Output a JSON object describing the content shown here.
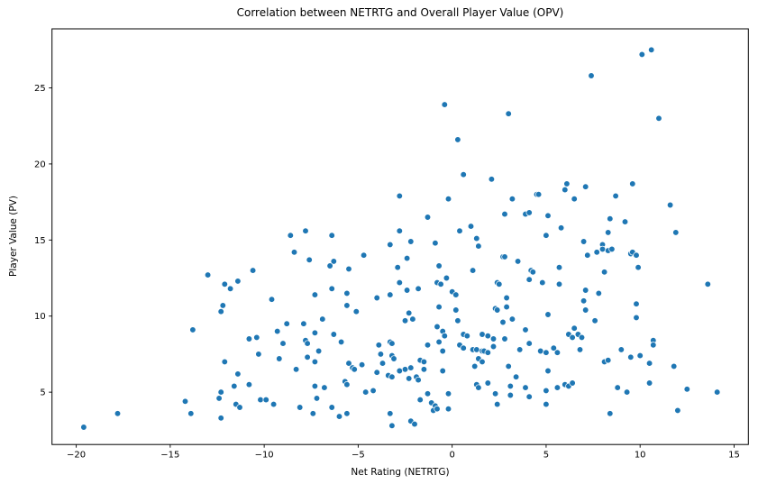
{
  "chart_data": {
    "type": "scatter",
    "title": "Correlation between NETRTG and Overall Player Value (OPV)",
    "xlabel": "Net Rating (NETRTG)",
    "ylabel": "Player Value (PV)",
    "xlim": [
      -21.29,
      15.76
    ],
    "ylim": [
      1.56,
      28.88
    ],
    "x_ticks": [
      -20,
      -15,
      -10,
      -5,
      0,
      5,
      10,
      15
    ],
    "y_ticks": [
      5,
      10,
      15,
      20,
      25
    ],
    "grid": false,
    "legend": "none",
    "marker_color": "#1f77b4",
    "marker_edge_color": "#ffffff",
    "points": [
      [
        -0.4,
        23.9
      ],
      [
        3.0,
        23.3
      ],
      [
        0.3,
        21.6
      ],
      [
        7.4,
        25.8
      ],
      [
        10.1,
        27.2
      ],
      [
        10.6,
        27.5
      ],
      [
        11.0,
        23.0
      ],
      [
        -2.8,
        17.9
      ],
      [
        -8.6,
        15.3
      ],
      [
        -7.8,
        15.6
      ],
      [
        -6.4,
        15.3
      ],
      [
        -2.8,
        15.6
      ],
      [
        -3.3,
        14.7
      ],
      [
        -8.4,
        14.2
      ],
      [
        -4.7,
        14.0
      ],
      [
        -7.6,
        13.7
      ],
      [
        -6.3,
        13.6
      ],
      [
        -6.5,
        13.3
      ],
      [
        -5.5,
        13.1
      ],
      [
        -10.6,
        13.0
      ],
      [
        -2.9,
        13.2
      ],
      [
        -11.4,
        12.3
      ],
      [
        -12.1,
        12.1
      ],
      [
        -13.0,
        12.7
      ],
      [
        -11.8,
        11.8
      ],
      [
        -9.6,
        11.1
      ],
      [
        -7.3,
        11.4
      ],
      [
        -6.4,
        11.8
      ],
      [
        -5.6,
        11.5
      ],
      [
        -5.6,
        10.7
      ],
      [
        -4.0,
        11.2
      ],
      [
        -3.3,
        11.4
      ],
      [
        0.6,
        19.3
      ],
      [
        2.1,
        19.0
      ],
      [
        6.1,
        18.7
      ],
      [
        -0.2,
        17.7
      ],
      [
        3.2,
        17.7
      ],
      [
        4.5,
        18.0
      ],
      [
        4.6,
        18.0
      ],
      [
        6.0,
        18.3
      ],
      [
        2.8,
        16.7
      ],
      [
        3.9,
        16.7
      ],
      [
        4.1,
        16.8
      ],
      [
        5.1,
        16.6
      ],
      [
        -1.3,
        16.5
      ],
      [
        5.8,
        15.8
      ],
      [
        0.4,
        15.6
      ],
      [
        1.0,
        15.9
      ],
      [
        5.0,
        15.3
      ],
      [
        1.3,
        15.1
      ],
      [
        1.4,
        14.6
      ],
      [
        -2.2,
        14.9
      ],
      [
        -0.9,
        14.8
      ],
      [
        -2.4,
        13.8
      ],
      [
        2.7,
        13.9
      ],
      [
        2.8,
        13.9
      ],
      [
        3.5,
        13.6
      ],
      [
        -0.7,
        13.3
      ],
      [
        1.1,
        13.0
      ],
      [
        5.7,
        13.2
      ],
      [
        4.2,
        13.0
      ],
      [
        4.3,
        12.9
      ],
      [
        -0.3,
        12.5
      ],
      [
        -0.8,
        12.2
      ],
      [
        -0.6,
        12.1
      ],
      [
        -1.8,
        11.8
      ],
      [
        -2.4,
        11.7
      ],
      [
        -2.8,
        12.2
      ],
      [
        0.0,
        11.6
      ],
      [
        0.2,
        11.4
      ],
      [
        2.4,
        12.2
      ],
      [
        2.5,
        12.1
      ],
      [
        2.9,
        11.2
      ],
      [
        4.1,
        12.4
      ],
      [
        4.8,
        12.2
      ],
      [
        5.7,
        12.1
      ],
      [
        7.1,
        18.5
      ],
      [
        9.6,
        18.7
      ],
      [
        8.7,
        17.9
      ],
      [
        6.5,
        17.7
      ],
      [
        11.6,
        17.3
      ],
      [
        8.4,
        16.4
      ],
      [
        9.2,
        16.2
      ],
      [
        8.3,
        15.5
      ],
      [
        11.9,
        15.5
      ],
      [
        7.0,
        14.9
      ],
      [
        8.0,
        14.7
      ],
      [
        7.2,
        14.0
      ],
      [
        7.7,
        14.2
      ],
      [
        8.0,
        14.4
      ],
      [
        8.3,
        14.3
      ],
      [
        8.5,
        14.4
      ],
      [
        9.5,
        14.1
      ],
      [
        9.6,
        14.2
      ],
      [
        9.8,
        14.0
      ],
      [
        9.9,
        13.2
      ],
      [
        8.1,
        12.9
      ],
      [
        13.6,
        12.1
      ],
      [
        7.1,
        11.7
      ],
      [
        7.8,
        11.5
      ],
      [
        7.0,
        11.0
      ],
      [
        9.8,
        10.8
      ],
      [
        -12.2,
        10.7
      ],
      [
        -12.3,
        10.3
      ],
      [
        -13.8,
        9.1
      ],
      [
        -12.1,
        7.0
      ],
      [
        -12.3,
        5.0
      ],
      [
        -12.4,
        4.6
      ],
      [
        -14.2,
        4.4
      ],
      [
        -13.9,
        3.6
      ],
      [
        -12.3,
        3.3
      ],
      [
        -17.8,
        3.6
      ],
      [
        -19.6,
        2.7
      ],
      [
        -5.1,
        10.3
      ],
      [
        -6.9,
        9.8
      ],
      [
        -8.8,
        9.5
      ],
      [
        -7.9,
        9.5
      ],
      [
        -9.3,
        9.0
      ],
      [
        -7.3,
        8.9
      ],
      [
        -6.3,
        8.8
      ],
      [
        -10.8,
        8.5
      ],
      [
        -10.4,
        8.6
      ],
      [
        -9.0,
        8.2
      ],
      [
        -7.8,
        8.4
      ],
      [
        -7.7,
        8.2
      ],
      [
        -10.3,
        7.5
      ],
      [
        -7.1,
        7.7
      ],
      [
        -7.7,
        7.3
      ],
      [
        -7.3,
        7.0
      ],
      [
        -8.3,
        6.5
      ],
      [
        -5.5,
        6.9
      ],
      [
        -5.3,
        6.6
      ],
      [
        -5.2,
        6.5
      ],
      [
        -4.8,
        6.8
      ],
      [
        -11.4,
        6.2
      ],
      [
        -11.6,
        5.4
      ],
      [
        -10.8,
        5.5
      ],
      [
        -7.3,
        5.4
      ],
      [
        -6.8,
        5.3
      ],
      [
        -5.7,
        5.7
      ],
      [
        -5.6,
        5.5
      ],
      [
        -4.6,
        5.0
      ],
      [
        -4.2,
        5.1
      ],
      [
        -7.2,
        4.6
      ],
      [
        -10.2,
        4.5
      ],
      [
        -9.9,
        4.5
      ],
      [
        -9.5,
        4.2
      ],
      [
        -11.5,
        4.2
      ],
      [
        -11.3,
        4.0
      ],
      [
        -8.1,
        4.0
      ],
      [
        -6.4,
        4.0
      ],
      [
        -7.4,
        3.6
      ],
      [
        -6.0,
        3.4
      ],
      [
        -5.6,
        3.6
      ],
      [
        -3.3,
        8.3
      ],
      [
        -3.2,
        8.2
      ],
      [
        -3.9,
        8.1
      ],
      [
        -3.8,
        7.5
      ],
      [
        -3.7,
        6.9
      ],
      [
        -3.2,
        7.4
      ],
      [
        -3.1,
        7.2
      ],
      [
        -4.0,
        6.3
      ],
      [
        -3.4,
        6.1
      ],
      [
        -3.2,
        6.0
      ],
      [
        -3.3,
        3.6
      ],
      [
        -3.2,
        2.8
      ],
      [
        -5.9,
        8.3
      ],
      [
        -9.2,
        7.2
      ],
      [
        -2.3,
        10.2
      ],
      [
        -2.1,
        9.8
      ],
      [
        -2.5,
        9.7
      ],
      [
        -0.7,
        10.6
      ],
      [
        0.2,
        10.4
      ],
      [
        0.3,
        9.7
      ],
      [
        2.3,
        10.5
      ],
      [
        2.4,
        10.4
      ],
      [
        2.9,
        10.6
      ],
      [
        3.2,
        9.8
      ],
      [
        2.7,
        9.6
      ],
      [
        5.1,
        10.1
      ],
      [
        3.9,
        9.1
      ],
      [
        6.2,
        8.8
      ],
      [
        6.4,
        8.6
      ],
      [
        -0.8,
        9.3
      ],
      [
        -0.5,
        9.0
      ],
      [
        -0.7,
        8.3
      ],
      [
        -0.4,
        8.7
      ],
      [
        -0.5,
        7.7
      ],
      [
        -1.3,
        8.1
      ],
      [
        0.6,
        8.8
      ],
      [
        0.8,
        8.7
      ],
      [
        1.6,
        8.8
      ],
      [
        1.9,
        8.7
      ],
      [
        2.2,
        8.5
      ],
      [
        0.4,
        8.1
      ],
      [
        0.6,
        7.9
      ],
      [
        1.1,
        7.8
      ],
      [
        1.3,
        7.8
      ],
      [
        1.6,
        7.7
      ],
      [
        1.7,
        7.7
      ],
      [
        1.9,
        7.6
      ],
      [
        2.2,
        8.0
      ],
      [
        2.8,
        8.5
      ],
      [
        3.6,
        7.8
      ],
      [
        4.1,
        8.2
      ],
      [
        4.7,
        7.7
      ],
      [
        5.0,
        7.6
      ],
      [
        5.4,
        7.9
      ],
      [
        5.6,
        7.6
      ],
      [
        1.4,
        7.2
      ],
      [
        1.6,
        7.0
      ],
      [
        1.2,
        6.7
      ],
      [
        -1.7,
        7.1
      ],
      [
        -1.5,
        7.0
      ],
      [
        -2.2,
        6.6
      ],
      [
        -1.5,
        6.5
      ],
      [
        -2.5,
        6.5
      ],
      [
        -2.8,
        6.4
      ],
      [
        -1.9,
        6.0
      ],
      [
        -1.8,
        5.8
      ],
      [
        -2.3,
        5.9
      ],
      [
        -0.5,
        6.4
      ],
      [
        3.0,
        6.7
      ],
      [
        3.4,
        6.0
      ],
      [
        5.1,
        6.4
      ],
      [
        6.0,
        5.5
      ],
      [
        6.2,
        5.4
      ],
      [
        6.4,
        5.6
      ],
      [
        1.3,
        5.5
      ],
      [
        1.4,
        5.3
      ],
      [
        1.9,
        5.6
      ],
      [
        2.3,
        4.9
      ],
      [
        3.1,
        5.4
      ],
      [
        3.9,
        5.3
      ],
      [
        3.1,
        4.8
      ],
      [
        4.1,
        4.7
      ],
      [
        5.0,
        5.1
      ],
      [
        5.6,
        5.3
      ],
      [
        -1.3,
        4.9
      ],
      [
        -1.7,
        4.5
      ],
      [
        -1.1,
        4.3
      ],
      [
        -0.9,
        4.1
      ],
      [
        -1.0,
        3.8
      ],
      [
        -0.8,
        3.9
      ],
      [
        -0.2,
        4.9
      ],
      [
        -0.2,
        3.9
      ],
      [
        2.4,
        4.2
      ],
      [
        5.0,
        4.2
      ],
      [
        -2.2,
        3.1
      ],
      [
        -2.0,
        2.9
      ],
      [
        7.1,
        10.4
      ],
      [
        9.8,
        9.9
      ],
      [
        7.6,
        9.7
      ],
      [
        6.5,
        9.2
      ],
      [
        6.7,
        8.8
      ],
      [
        6.9,
        8.6
      ],
      [
        6.8,
        7.8
      ],
      [
        9.0,
        7.8
      ],
      [
        10.7,
        8.4
      ],
      [
        10.7,
        8.1
      ],
      [
        8.1,
        7.0
      ],
      [
        8.3,
        7.1
      ],
      [
        9.5,
        7.3
      ],
      [
        10.0,
        7.4
      ],
      [
        10.5,
        6.9
      ],
      [
        11.8,
        6.7
      ],
      [
        10.5,
        5.6
      ],
      [
        8.8,
        5.3
      ],
      [
        9.3,
        5.0
      ],
      [
        12.5,
        5.2
      ],
      [
        14.1,
        5.0
      ],
      [
        12.0,
        3.8
      ],
      [
        8.4,
        3.6
      ]
    ]
  }
}
